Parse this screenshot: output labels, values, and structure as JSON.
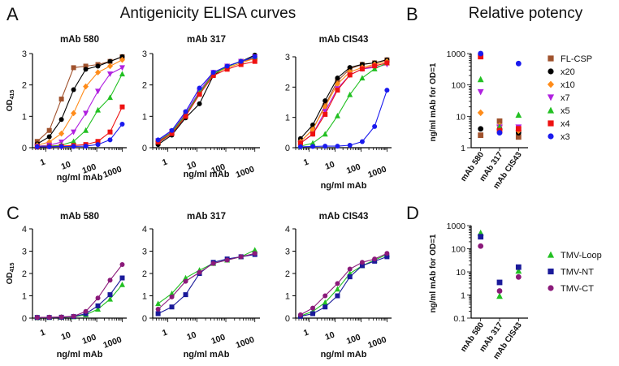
{
  "figure": {
    "panel_letters": [
      "A",
      "B",
      "C",
      "D"
    ],
    "title_a": "Antigenicity ELISA curves",
    "title_b": "Relative potency"
  },
  "x_ticks": [
    "1",
    "10",
    "100",
    "1000"
  ],
  "series_styles": {
    "FL-CSP": {
      "color": "#a0522d",
      "marker": "square"
    },
    "x20": {
      "color": "#000000",
      "marker": "circle"
    },
    "x10": {
      "color": "#ff8c1a",
      "marker": "diamond"
    },
    "x7": {
      "color": "#b020e0",
      "marker": "triangle-down"
    },
    "x5": {
      "color": "#22c022",
      "marker": "triangle"
    },
    "x4": {
      "color": "#ee1111",
      "marker": "square"
    },
    "x3": {
      "color": "#1a1aee",
      "marker": "circle"
    },
    "TMV-Loop": {
      "color": "#22c022",
      "marker": "triangle"
    },
    "TMV-NT": {
      "color": "#1a1a9a",
      "marker": "square"
    },
    "TMV-CT": {
      "color": "#8b1a7a",
      "marker": "circle"
    }
  },
  "chart_data": [
    {
      "id": "A1",
      "type": "line",
      "panel": "A",
      "title": "mAb 580",
      "xlabel": "ng/ml mAb",
      "ylabel": "OD415",
      "xscale": "log",
      "xlim": [
        0.3,
        1500
      ],
      "ylim": [
        0,
        3
      ],
      "yticks": [
        0,
        1,
        2,
        3
      ],
      "x": [
        0.46,
        1.37,
        4.1,
        12.3,
        37,
        111,
        333,
        1000
      ],
      "series": [
        {
          "name": "FL-CSP",
          "values": [
            0.2,
            0.55,
            1.55,
            2.55,
            2.6,
            2.65,
            2.75,
            2.9
          ]
        },
        {
          "name": "x20",
          "values": [
            0.12,
            0.35,
            0.9,
            1.85,
            2.5,
            2.6,
            2.75,
            2.9
          ]
        },
        {
          "name": "x10",
          "values": [
            0.08,
            0.18,
            0.45,
            1.1,
            1.95,
            2.4,
            2.6,
            2.8
          ]
        },
        {
          "name": "x7",
          "values": [
            0.05,
            0.08,
            0.18,
            0.5,
            1.1,
            1.8,
            2.35,
            2.55
          ]
        },
        {
          "name": "x5",
          "values": [
            0.04,
            0.05,
            0.08,
            0.2,
            0.55,
            1.2,
            1.6,
            2.35
          ]
        },
        {
          "name": "x4",
          "values": [
            0.03,
            0.04,
            0.05,
            0.07,
            0.1,
            0.2,
            0.5,
            1.3
          ]
        },
        {
          "name": "x3",
          "values": [
            0.03,
            0.03,
            0.04,
            0.04,
            0.05,
            0.1,
            0.25,
            0.75
          ]
        }
      ]
    },
    {
      "id": "A2",
      "type": "line",
      "panel": "A",
      "title": "mAb 317",
      "xlabel": "ng/ml mAb",
      "ylabel": "",
      "xscale": "log",
      "xlim": [
        0.3,
        1500
      ],
      "ylim": [
        0,
        3
      ],
      "yticks": [
        0,
        1,
        2,
        3
      ],
      "x": [
        0.46,
        1.37,
        4.1,
        12.3,
        37,
        111,
        333,
        1000
      ],
      "series": [
        {
          "name": "FL-CSP",
          "values": [
            0.15,
            0.45,
            1.05,
            1.75,
            2.35,
            2.6,
            2.75,
            2.85
          ]
        },
        {
          "name": "x20",
          "values": [
            0.1,
            0.4,
            0.95,
            1.4,
            2.3,
            2.6,
            2.75,
            2.95
          ]
        },
        {
          "name": "x10",
          "values": [
            0.2,
            0.5,
            1.05,
            1.75,
            2.35,
            2.55,
            2.7,
            2.85
          ]
        },
        {
          "name": "x7",
          "values": [
            0.22,
            0.52,
            1.1,
            1.8,
            2.4,
            2.6,
            2.75,
            2.9
          ]
        },
        {
          "name": "x5",
          "values": [
            0.2,
            0.5,
            1.05,
            1.75,
            2.35,
            2.58,
            2.75,
            2.9
          ]
        },
        {
          "name": "x4",
          "values": [
            0.18,
            0.45,
            1.0,
            1.7,
            2.3,
            2.5,
            2.65,
            2.75
          ]
        },
        {
          "name": "x3",
          "values": [
            0.25,
            0.55,
            1.15,
            1.9,
            2.4,
            2.6,
            2.75,
            2.9
          ]
        }
      ]
    },
    {
      "id": "A3",
      "type": "line",
      "panel": "A",
      "title": "mAb CIS43",
      "xlabel": "ng/ml mAb",
      "ylabel": "",
      "xscale": "log",
      "xlim": [
        0.3,
        1500
      ],
      "ylim": [
        0,
        3
      ],
      "yticks": [
        0,
        1,
        2,
        3
      ],
      "x": [
        0.46,
        1.37,
        4.1,
        12.3,
        37,
        111,
        333,
        1000
      ],
      "series": [
        {
          "name": "FL-CSP",
          "values": [
            0.2,
            0.6,
            1.4,
            2.2,
            2.6,
            2.75,
            2.8,
            2.9
          ]
        },
        {
          "name": "x20",
          "values": [
            0.3,
            0.75,
            1.55,
            2.3,
            2.65,
            2.75,
            2.8,
            2.9
          ]
        },
        {
          "name": "x10",
          "values": [
            0.2,
            0.6,
            1.35,
            2.1,
            2.5,
            2.65,
            2.75,
            2.85
          ]
        },
        {
          "name": "x7",
          "values": [
            0.15,
            0.45,
            1.2,
            1.95,
            2.4,
            2.6,
            2.65,
            2.75
          ]
        },
        {
          "name": "x5",
          "values": [
            0.05,
            0.15,
            0.45,
            1.05,
            1.75,
            2.3,
            2.6,
            2.8
          ]
        },
        {
          "name": "x4",
          "values": [
            0.15,
            0.45,
            1.1,
            1.9,
            2.4,
            2.6,
            2.7,
            2.8
          ]
        },
        {
          "name": "x3",
          "values": [
            0.03,
            0.04,
            0.05,
            0.05,
            0.08,
            0.2,
            0.7,
            1.9
          ]
        }
      ]
    },
    {
      "id": "B",
      "type": "scatter",
      "panel": "B",
      "title": "Relative potency",
      "ylabel": "ng/ml mAb for OD=1",
      "yscale": "log",
      "ylim": [
        1,
        1000
      ],
      "yticks": [
        "1",
        "10",
        "100",
        "1000"
      ],
      "categories": [
        "mAb 580",
        "mAb 317",
        "mAb CIS43"
      ],
      "series": [
        {
          "name": "FL-CSP",
          "values": [
            2.5,
            7,
            2.2
          ]
        },
        {
          "name": "x20",
          "values": [
            4,
            4,
            3
          ]
        },
        {
          "name": "x10",
          "values": [
            13,
            5,
            3.5
          ]
        },
        {
          "name": "x7",
          "values": [
            60,
            4.5,
            4.5
          ]
        },
        {
          "name": "x5",
          "values": [
            150,
            4.5,
            11
          ]
        },
        {
          "name": "x4",
          "values": [
            800,
            3.5,
            4
          ]
        },
        {
          "name": "x3",
          "values": [
            1000,
            3,
            480
          ]
        }
      ],
      "legend": [
        "FL-CSP",
        "x20",
        "x10",
        "x7",
        "x5",
        "x4",
        "x3"
      ],
      "legend_position": "right"
    },
    {
      "id": "C1",
      "type": "line",
      "panel": "C",
      "title": "mAb 580",
      "xlabel": "ng/ml mAb",
      "ylabel": "OD415",
      "xscale": "log",
      "xlim": [
        0.3,
        1500
      ],
      "ylim": [
        0,
        4
      ],
      "yticks": [
        0,
        1,
        2,
        3,
        4
      ],
      "x": [
        0.46,
        1.37,
        4.1,
        12.3,
        37,
        111,
        333,
        1000
      ],
      "series": [
        {
          "name": "TMV-Loop",
          "values": [
            0.03,
            0.03,
            0.04,
            0.06,
            0.15,
            0.4,
            0.85,
            1.5
          ]
        },
        {
          "name": "TMV-NT",
          "values": [
            0.03,
            0.03,
            0.04,
            0.07,
            0.2,
            0.55,
            1.05,
            1.8
          ]
        },
        {
          "name": "TMV-CT",
          "values": [
            0.03,
            0.04,
            0.05,
            0.08,
            0.3,
            0.9,
            1.7,
            2.4
          ]
        }
      ]
    },
    {
      "id": "C2",
      "type": "line",
      "panel": "C",
      "title": "mAb 317",
      "xlabel": "ng/ml mAb",
      "ylabel": "",
      "xscale": "log",
      "xlim": [
        0.3,
        1500
      ],
      "ylim": [
        0,
        4
      ],
      "yticks": [
        0,
        1,
        2,
        3,
        4
      ],
      "x": [
        0.46,
        1.37,
        4.1,
        12.3,
        37,
        111,
        333,
        1000
      ],
      "series": [
        {
          "name": "TMV-Loop",
          "values": [
            0.65,
            1.1,
            1.8,
            2.15,
            2.45,
            2.6,
            2.75,
            3.05
          ]
        },
        {
          "name": "TMV-NT",
          "values": [
            0.2,
            0.5,
            1.05,
            2.0,
            2.5,
            2.65,
            2.75,
            2.85
          ]
        },
        {
          "name": "TMV-CT",
          "values": [
            0.4,
            0.95,
            1.65,
            2.05,
            2.45,
            2.6,
            2.75,
            2.9
          ]
        }
      ]
    },
    {
      "id": "C3",
      "type": "line",
      "panel": "C",
      "title": "mAb CIS43",
      "xlabel": "ng/ml mAb",
      "ylabel": "",
      "xscale": "log",
      "xlim": [
        0.3,
        1500
      ],
      "ylim": [
        0,
        4
      ],
      "yticks": [
        0,
        1,
        2,
        3,
        4
      ],
      "x": [
        0.46,
        1.37,
        4.1,
        12.3,
        37,
        111,
        333,
        1000
      ],
      "series": [
        {
          "name": "TMV-Loop",
          "values": [
            0.1,
            0.3,
            0.7,
            1.3,
            2.0,
            2.35,
            2.6,
            2.85
          ]
        },
        {
          "name": "TMV-NT",
          "values": [
            0.08,
            0.2,
            0.5,
            1.0,
            1.85,
            2.35,
            2.55,
            2.75
          ]
        },
        {
          "name": "TMV-CT",
          "values": [
            0.15,
            0.45,
            1.0,
            1.55,
            2.2,
            2.5,
            2.65,
            2.9
          ]
        }
      ]
    },
    {
      "id": "D",
      "type": "scatter",
      "panel": "D",
      "title": "",
      "ylabel": "ng/ml mAb for OD=1",
      "yscale": "log",
      "ylim": [
        0.1,
        1000
      ],
      "yticks": [
        "0.1",
        "1",
        "10",
        "100",
        "1000"
      ],
      "categories": [
        "mAb 580",
        "mAb 317",
        "mAb CIS43"
      ],
      "series": [
        {
          "name": "TMV-Loop",
          "values": [
            480,
            0.9,
            11
          ]
        },
        {
          "name": "TMV-NT",
          "values": [
            330,
            3.5,
            16
          ]
        },
        {
          "name": "TMV-CT",
          "values": [
            130,
            1.5,
            6
          ]
        }
      ],
      "legend": [
        "TMV-Loop",
        "TMV-NT",
        "TMV-CT"
      ],
      "legend_position": "right"
    }
  ]
}
